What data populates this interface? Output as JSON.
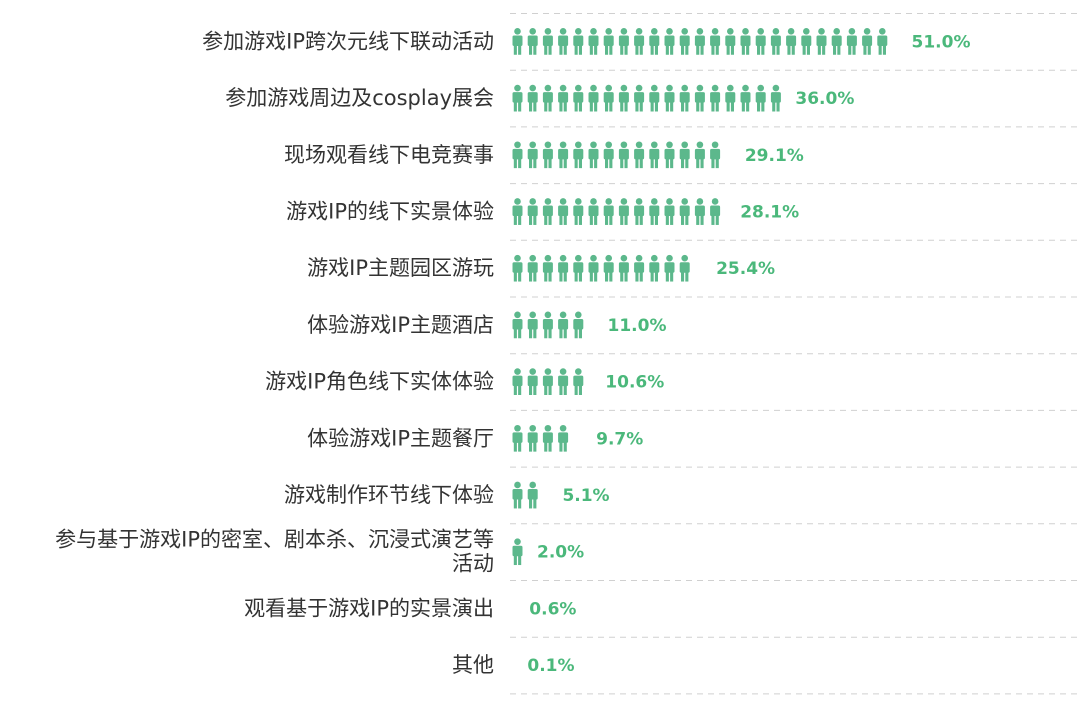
{
  "chart_data": {
    "type": "bar",
    "style": "pictogram",
    "icon": "person-icon",
    "bar_color": "#5cb88c",
    "label_color": "#4bb87b",
    "grid": "dashed horizontal separators",
    "categories": [
      "参加游戏IP跨次元线下联动活动",
      "参加游戏周边及cosplay展会",
      "现场观看线下电竞赛事",
      "游戏IP的线下实景体验",
      "游戏IP主题园区游玩",
      "体验游戏IP主题酒店",
      "游戏IP角色线下实体体验",
      "体验游戏IP主题餐厅",
      "游戏制作环节线下体验",
      "参与基于游戏IP的密室、剧本杀、沉浸式演艺等活动",
      "观看基于游戏IP的实景演出",
      "其他"
    ],
    "category_lines": [
      [
        "参加游戏IP跨次元线下联动活动"
      ],
      [
        "参加游戏周边及cosplay展会"
      ],
      [
        "现场观看线下电竞赛事"
      ],
      [
        "游戏IP的线下实景体验"
      ],
      [
        "游戏IP主题园区游玩"
      ],
      [
        "体验游戏IP主题酒店"
      ],
      [
        "游戏IP角色线下实体体验"
      ],
      [
        "体验游戏IP主题餐厅"
      ],
      [
        "游戏制作环节线下体验"
      ],
      [
        "参与基于游戏IP的密室、剧本杀、沉浸式演艺等",
        "活动"
      ],
      [
        "观看基于游戏IP的实景演出"
      ],
      [
        "其他"
      ]
    ],
    "values": [
      51.0,
      36.0,
      29.1,
      28.1,
      25.4,
      11.0,
      10.6,
      9.7,
      5.1,
      2.0,
      0.6,
      0.1
    ],
    "value_labels": [
      "51.0%",
      "36.0%",
      "29.1%",
      "28.1%",
      "25.4%",
      "11.0%",
      "10.6%",
      "9.7%",
      "5.1%",
      "2.0%",
      "0.6%",
      "0.1%"
    ],
    "unit": "%"
  }
}
